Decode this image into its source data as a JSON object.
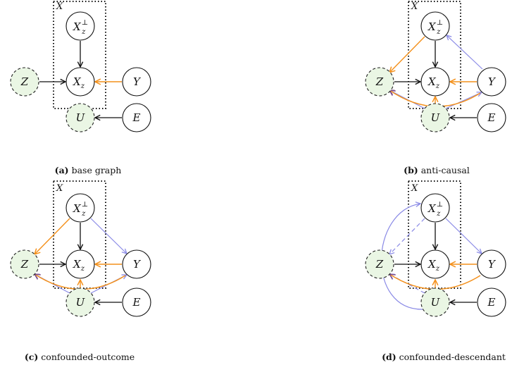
{
  "box_label": "X",
  "nodes": {
    "xperp": {
      "main": "X",
      "sup": "⊥",
      "sub": "z"
    },
    "xz": {
      "main": "X",
      "sub": "z"
    },
    "z": "Z",
    "y": "Y",
    "u": "U",
    "e": "E"
  },
  "panels": [
    {
      "tag": "(a)",
      "caption": "base graph"
    },
    {
      "tag": "(b)",
      "caption": "anti-causal"
    },
    {
      "tag": "(c)",
      "caption": "confounded-outcome"
    },
    {
      "tag": "(d)",
      "caption": "confounded-descendant"
    }
  ],
  "colors": {
    "black_edge": "#111111",
    "orange_edge": "#f4901a",
    "blue_edge": "#8a8ae6",
    "latent_fill": "#eaf6e4"
  }
}
